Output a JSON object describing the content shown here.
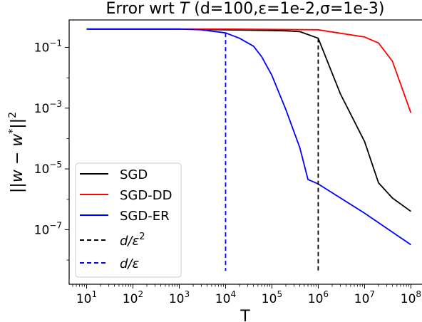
{
  "chart_data": {
    "type": "line",
    "title": "Error wrt T (d=100,ε=1e-2,σ=1e-3)",
    "title_prefix": "Error wrt ",
    "title_var": "T",
    "title_suffix": " (d=100,ε=1e-2,σ=1e-3)",
    "xlabel": "T",
    "ylabel": "||w − w*||²",
    "xscale": "log",
    "yscale": "log",
    "xlim": [
      4.2,
      180000000.0
    ],
    "ylim": [
      1.6e-09,
      0.8
    ],
    "x_ticks": [
      {
        "value": 10.0,
        "base": "10",
        "exp": "1"
      },
      {
        "value": 100.0,
        "base": "10",
        "exp": "2"
      },
      {
        "value": 1000.0,
        "base": "10",
        "exp": "3"
      },
      {
        "value": 10000.0,
        "base": "10",
        "exp": "4"
      },
      {
        "value": 100000.0,
        "base": "10",
        "exp": "5"
      },
      {
        "value": 1000000.0,
        "base": "10",
        "exp": "6"
      },
      {
        "value": 10000000.0,
        "base": "10",
        "exp": "7"
      },
      {
        "value": 100000000.0,
        "base": "10",
        "exp": "8"
      }
    ],
    "y_ticks": [
      {
        "value": 0.1,
        "base": "10",
        "exp": "−1"
      },
      {
        "value": 0.001,
        "base": "10",
        "exp": "−3"
      },
      {
        "value": 1e-05,
        "base": "10",
        "exp": "−5"
      },
      {
        "value": 1e-07,
        "base": "10",
        "exp": "−7"
      }
    ],
    "series": [
      {
        "name": "SGD",
        "color": "#000000",
        "dash": false,
        "x": [
          10,
          1000,
          10000,
          30000,
          100000,
          200000,
          400000,
          1000000,
          3000000,
          10000000,
          20000000,
          40000000,
          100000000
        ],
        "y": [
          0.4,
          0.4,
          0.38,
          0.37,
          0.36,
          0.35,
          0.33,
          0.2,
          0.003,
          8e-05,
          3.5e-06,
          1.1e-06,
          4e-07
        ]
      },
      {
        "name": "SGD-DD",
        "color": "#ff0000",
        "dash": false,
        "x": [
          10,
          10000,
          100000,
          1000000,
          10000000,
          20000000,
          40000000,
          100000000
        ],
        "y": [
          0.4,
          0.4,
          0.39,
          0.38,
          0.22,
          0.14,
          0.035,
          0.0007
        ]
      },
      {
        "name": "SGD-ER",
        "color": "#0000ff",
        "dash": false,
        "x": [
          10,
          1000,
          3000,
          10000,
          20000,
          40000,
          60000,
          100000,
          200000,
          400000,
          600000,
          1000000,
          10000000,
          100000000
        ],
        "y": [
          0.4,
          0.4,
          0.38,
          0.3,
          0.2,
          0.11,
          0.05,
          0.012,
          0.0009,
          5e-05,
          4.5e-06,
          3.2e-06,
          3.5e-07,
          3.2e-08
        ]
      }
    ],
    "vlines": [
      {
        "name": "d/ε²",
        "color": "#000000",
        "x": 1000000,
        "ymin": 1e-09,
        "ymax": 0.2
      },
      {
        "name": "d/ε",
        "color": "#0000ff",
        "x": 10000,
        "ymin": 1e-09,
        "ymax": 0.3
      }
    ],
    "legend_location": "lower-left",
    "grid": false
  }
}
